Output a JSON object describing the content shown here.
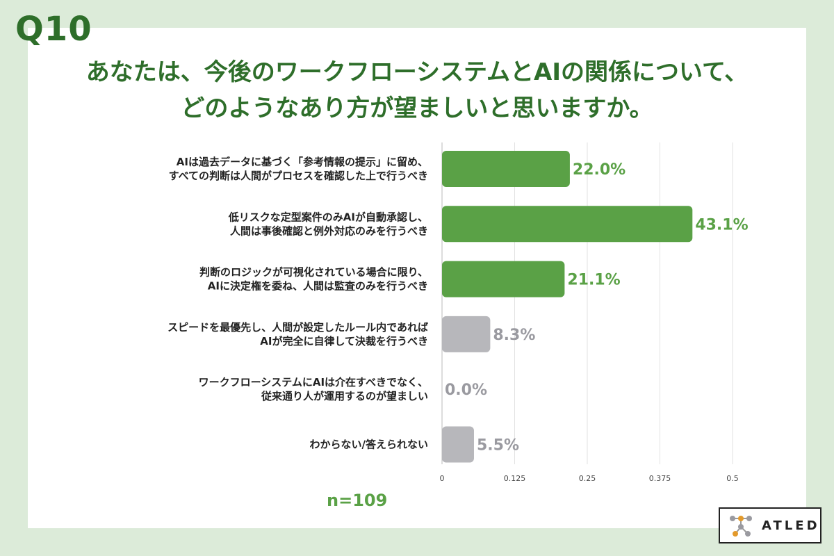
{
  "header": {
    "qnum": "Q10",
    "title_line1": "あなたは、今後のワークフローシステムとAIの関係について、",
    "title_line2": "どのようなあり方が望ましいと思いますか。"
  },
  "footer": {
    "n": "n=109",
    "logo_text": "ATLED"
  },
  "colors": {
    "highlight": "#5aa146",
    "muted": "#b7b7bb",
    "muted_text": "#9a9aa0",
    "background": "#dcebd9",
    "title": "#2e6e2a"
  },
  "chart_data": {
    "type": "bar",
    "orientation": "horizontal",
    "categories": [
      [
        "AIは過去データに基づく「参考情報の提示」に留め、",
        "すべての判断は人間がプロセスを確認した上で行うべき"
      ],
      [
        "低リスクな定型案件のみAIが自動承認し、",
        "人間は事後確認と例外対応のみを行うべき"
      ],
      [
        "判断のロジックが可視化されている場合に限り、",
        "AIに決定権を委ね、人間は監査のみを行うべき"
      ],
      [
        "スピードを最優先し、人間が設定したルール内であれば",
        "AIが完全に自律して決裁を行うべき"
      ],
      [
        "ワークフローシステムにAIは介在すべきでなく、",
        "従来通り人が運用するのが望ましい"
      ],
      [
        "わからない/答えられない"
      ]
    ],
    "values": [
      0.22,
      0.431,
      0.211,
      0.083,
      0.0,
      0.055
    ],
    "value_labels": [
      "22.0%",
      "43.1%",
      "21.1%",
      "8.3%",
      "0.0%",
      "5.5%"
    ],
    "highlight": [
      true,
      true,
      true,
      false,
      false,
      false
    ],
    "xlim": [
      0,
      0.5
    ],
    "xticks": [
      0,
      0.125,
      0.25,
      0.375,
      0.5
    ],
    "xtick_labels": [
      "0",
      "0.125",
      "0.25",
      "0.375",
      "0.5"
    ],
    "grid": true
  }
}
